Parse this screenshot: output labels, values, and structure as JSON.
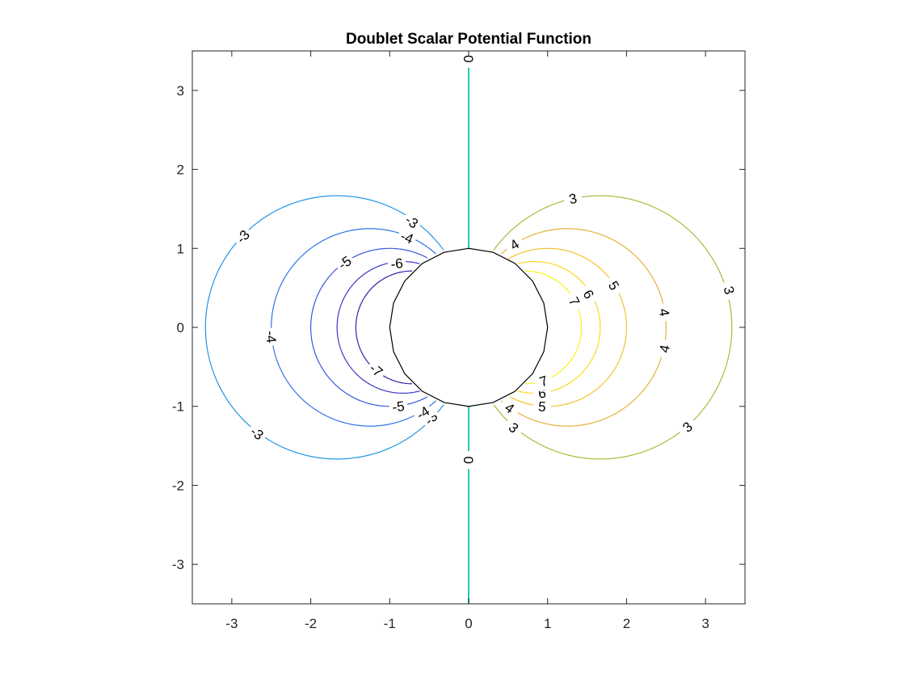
{
  "chart_data": {
    "type": "contour",
    "title": "Doublet Scalar Potential Function",
    "xlabel": "",
    "ylabel": "",
    "xlim": [
      -3.5,
      3.5
    ],
    "ylim": [
      -3.5,
      3.5
    ],
    "x_ticks": [
      -3,
      -2,
      -1,
      0,
      1,
      2,
      3
    ],
    "y_ticks": [
      -3,
      -2,
      -1,
      0,
      1,
      2,
      3
    ],
    "x_tick_labels": [
      "-3",
      "-2",
      "-1",
      "0",
      "1",
      "2",
      "3"
    ],
    "y_tick_labels": [
      "-3",
      "-2",
      "-1",
      "0",
      "1",
      "2",
      "3"
    ],
    "grid": false,
    "box": true,
    "function": "phi = 10*x/(x^2+y^2)",
    "mask_radius": 1,
    "levels": [
      {
        "value": -7,
        "color": "#3a1f9e"
      },
      {
        "value": -6,
        "color": "#3b38c8"
      },
      {
        "value": -5,
        "color": "#3a56e0"
      },
      {
        "value": -4,
        "color": "#2f75ea"
      },
      {
        "value": -3,
        "color": "#1f93e6"
      },
      {
        "value": 0,
        "color": "#2ec5b4"
      },
      {
        "value": 3,
        "color": "#9fbf3a"
      },
      {
        "value": 4,
        "color": "#e6b13a"
      },
      {
        "value": 5,
        "color": "#f6c22e"
      },
      {
        "value": 6,
        "color": "#fada20"
      },
      {
        "value": 7,
        "color": "#f9f514"
      }
    ],
    "contour_labels": [
      {
        "text": "-3",
        "x": -2.86,
        "y": 1.15
      },
      {
        "text": "-3",
        "x": -0.72,
        "y": 1.34
      },
      {
        "text": "-3",
        "x": -2.68,
        "y": -1.34
      },
      {
        "text": "-3",
        "x": -0.48,
        "y": -1.15
      },
      {
        "text": "-4",
        "x": -0.78,
        "y": 1.14
      },
      {
        "text": "-4",
        "x": -2.5,
        "y": -0.12
      },
      {
        "text": "-4",
        "x": -0.58,
        "y": -1.08
      },
      {
        "text": "-5",
        "x": -1.57,
        "y": 0.82
      },
      {
        "text": "-5",
        "x": -0.89,
        "y": -1.0
      },
      {
        "text": "-6",
        "x": -0.91,
        "y": 0.81
      },
      {
        "text": "-7",
        "x": -1.17,
        "y": -0.54
      },
      {
        "text": "0",
        "x": 0.0,
        "y": 3.4
      },
      {
        "text": "0",
        "x": 0.0,
        "y": -1.68
      },
      {
        "text": "3",
        "x": 1.32,
        "y": 1.63
      },
      {
        "text": "3",
        "x": 3.3,
        "y": 0.47
      },
      {
        "text": "3",
        "x": 2.77,
        "y": -1.26
      },
      {
        "text": "3",
        "x": 0.57,
        "y": -1.27
      },
      {
        "text": "4",
        "x": 0.58,
        "y": 1.05
      },
      {
        "text": "4",
        "x": 2.48,
        "y": 0.19
      },
      {
        "text": "4",
        "x": 2.48,
        "y": -0.27
      },
      {
        "text": "4",
        "x": 0.52,
        "y": -1.02
      },
      {
        "text": "5",
        "x": 1.84,
        "y": 0.53
      },
      {
        "text": "5",
        "x": 0.93,
        "y": -1.0
      },
      {
        "text": "6",
        "x": 1.52,
        "y": 0.42
      },
      {
        "text": "6",
        "x": 0.93,
        "y": -0.83
      },
      {
        "text": "7",
        "x": 1.34,
        "y": 0.33
      },
      {
        "text": "7",
        "x": 0.95,
        "y": -0.68
      }
    ]
  }
}
